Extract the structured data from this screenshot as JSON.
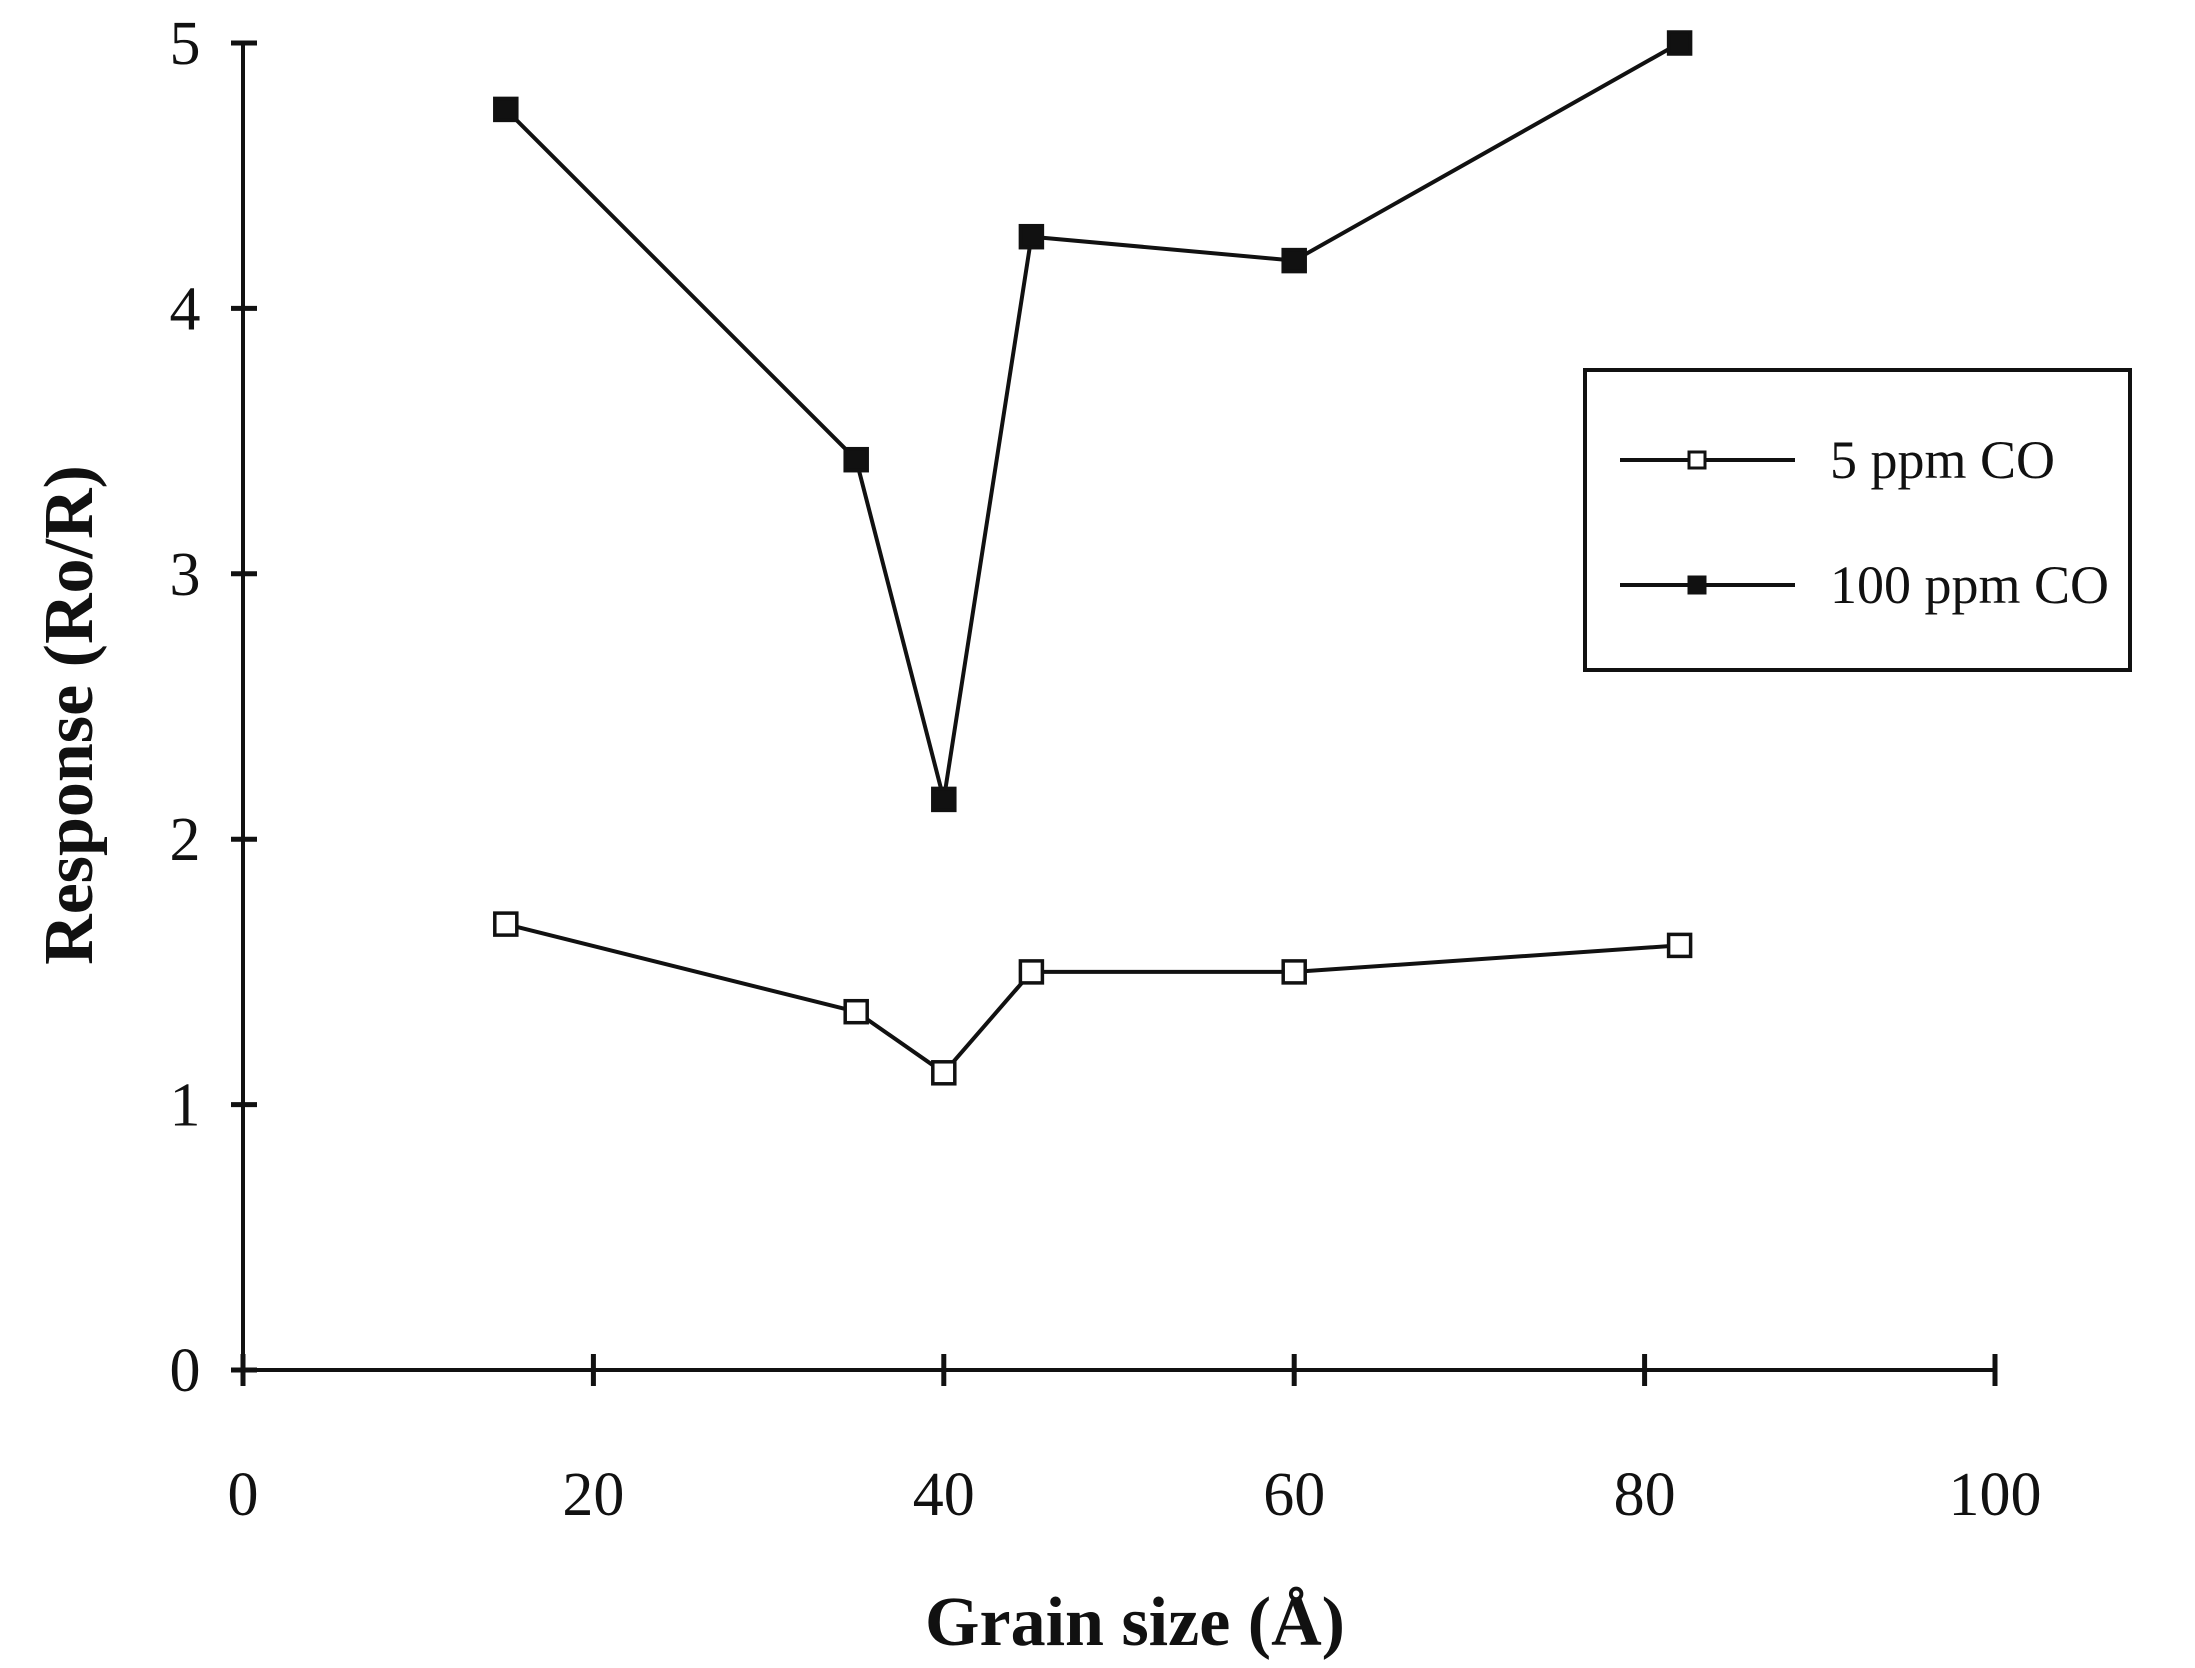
{
  "chart_data": {
    "type": "line",
    "xlabel": "Grain size (Å)",
    "ylabel": "Response (Ro/R)",
    "xlim": [
      0,
      100
    ],
    "ylim": [
      0,
      5
    ],
    "x_ticks": [
      "0",
      "20",
      "40",
      "60",
      "80",
      "100"
    ],
    "y_ticks": [
      "0",
      "1",
      "2",
      "3",
      "4",
      "5"
    ],
    "grid": false,
    "legend_position": "right",
    "series": [
      {
        "name": "5 ppm CO",
        "marker": "open-square",
        "x": [
          15,
          35,
          40,
          45,
          60,
          82
        ],
        "y": [
          1.68,
          1.35,
          1.12,
          1.5,
          1.5,
          1.6
        ]
      },
      {
        "name": "100 ppm CO",
        "marker": "filled-square",
        "x": [
          15,
          35,
          40,
          45,
          60,
          82
        ],
        "y": [
          4.75,
          3.43,
          2.15,
          4.27,
          4.18,
          5.0
        ]
      }
    ]
  },
  "colors": {
    "line": "#111111",
    "background": "#ffffff"
  }
}
